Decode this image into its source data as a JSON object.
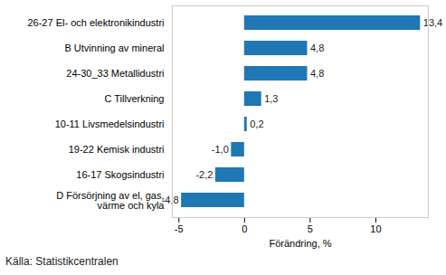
{
  "chart_data": {
    "type": "bar",
    "orientation": "horizontal",
    "categories": [
      "26-27 El- och elektronikindustri",
      "B Utvinning av mineral",
      "24-30_33 Metallidustri",
      "C Tillverkning",
      "10-11 Livsmedelsindustri",
      "19-22 Kemisk industri",
      "16-17 Skogsindustri",
      "D Försörjning av el, gas,\nvärme och kyla"
    ],
    "values": [
      13.4,
      4.8,
      4.8,
      1.3,
      0.2,
      -1.0,
      -2.2,
      -4.8
    ],
    "value_labels": [
      "13,4",
      "4,8",
      "4,8",
      "1,3",
      "0,2",
      "-1,0",
      "-2,2",
      "-4,8"
    ],
    "data_labels": true,
    "color": "#1f77b4",
    "xlabel": "Förändring, %",
    "xlim": [
      -5.5,
      14
    ],
    "xticks": [
      -5,
      0,
      5,
      10
    ],
    "grid": false,
    "caption": "Källa: Statistikcentralen"
  }
}
